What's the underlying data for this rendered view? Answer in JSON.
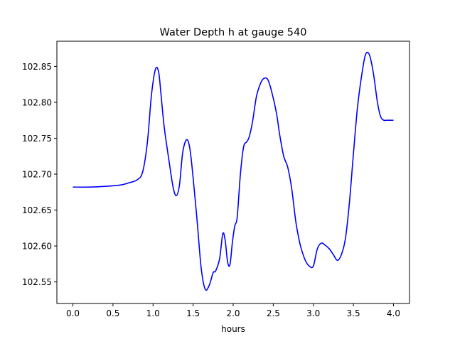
{
  "chart_data": {
    "type": "line",
    "title": "Water Depth h at gauge 540",
    "xlabel": "hours",
    "ylabel": "",
    "xlim": [
      -0.2,
      4.2
    ],
    "ylim": [
      102.52,
      102.885
    ],
    "xticks": [
      0.0,
      0.5,
      1.0,
      1.5,
      2.0,
      2.5,
      3.0,
      3.5,
      4.0
    ],
    "xtick_labels": [
      "0.0",
      "0.5",
      "1.0",
      "1.5",
      "2.0",
      "2.5",
      "3.0",
      "3.5",
      "4.0"
    ],
    "yticks": [
      102.55,
      102.6,
      102.65,
      102.7,
      102.75,
      102.8,
      102.85
    ],
    "ytick_labels": [
      "102.55",
      "102.60",
      "102.65",
      "102.70",
      "102.75",
      "102.80",
      "102.85"
    ],
    "grid": false,
    "series": [
      {
        "color": "#0000ff",
        "x": [
          0.0,
          0.2,
          0.4,
          0.6,
          0.7,
          0.8,
          0.87,
          0.93,
          0.98,
          1.03,
          1.07,
          1.1,
          1.14,
          1.2,
          1.25,
          1.29,
          1.33,
          1.37,
          1.42,
          1.46,
          1.5,
          1.55,
          1.6,
          1.65,
          1.7,
          1.75,
          1.78,
          1.83,
          1.87,
          1.9,
          1.93,
          1.96,
          1.99,
          2.02,
          2.05,
          2.09,
          2.13,
          2.17,
          2.2,
          2.24,
          2.29,
          2.34,
          2.38,
          2.43,
          2.48,
          2.54,
          2.58,
          2.63,
          2.68,
          2.73,
          2.78,
          2.82,
          2.85,
          2.9,
          2.95,
          3.0,
          3.05,
          3.1,
          3.15,
          3.2,
          3.25,
          3.3,
          3.35,
          3.4,
          3.45,
          3.5,
          3.55,
          3.6,
          3.65,
          3.7,
          3.75,
          3.8,
          3.84,
          3.88,
          3.91,
          3.94,
          3.97,
          4.0
        ],
        "y": [
          102.682,
          102.682,
          102.683,
          102.685,
          102.688,
          102.692,
          102.703,
          102.745,
          102.81,
          102.846,
          102.842,
          102.81,
          102.765,
          102.718,
          102.682,
          102.67,
          102.685,
          102.73,
          102.748,
          102.735,
          102.695,
          102.635,
          102.57,
          102.54,
          102.545,
          102.563,
          102.565,
          102.582,
          102.617,
          102.608,
          102.578,
          102.574,
          102.605,
          102.628,
          102.64,
          102.7,
          102.738,
          102.745,
          102.752,
          102.772,
          102.808,
          102.826,
          102.833,
          102.832,
          102.815,
          102.785,
          102.755,
          102.725,
          102.71,
          102.68,
          102.635,
          102.61,
          102.596,
          102.58,
          102.572,
          102.572,
          102.596,
          102.604,
          102.601,
          102.596,
          102.588,
          102.58,
          102.588,
          102.61,
          102.66,
          102.728,
          102.792,
          102.835,
          102.866,
          102.866,
          102.84,
          102.8,
          102.78,
          102.775,
          102.775,
          102.775,
          102.775,
          102.775
        ]
      }
    ]
  }
}
